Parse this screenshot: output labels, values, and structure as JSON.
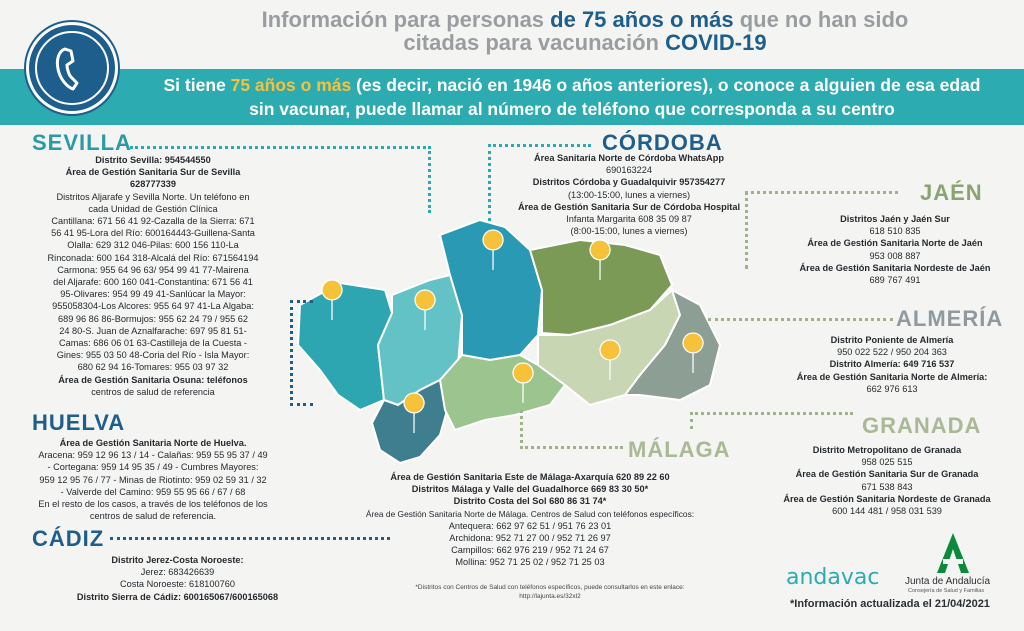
{
  "title": {
    "part1": "Información para personas ",
    "highlight1": "de 75 años o más",
    "part2": " que no han sido",
    "part3": "citadas para vacunación ",
    "highlight2": "COVID-19"
  },
  "banner": {
    "part1": "Si tiene ",
    "highlight": "75 años o más",
    "part2": " (es decir, nació en 1946 o años anteriores), o conoce a alguien de esa edad",
    "line2": "sin vacunar, puede llamar al número de teléfono que corresponda a su centro"
  },
  "colors": {
    "teal": "#2cabb1",
    "navy": "#1e5e8c",
    "yellow": "#f6c23a",
    "green": "#8aa371"
  },
  "regions": {
    "sevilla": {
      "name": "SEVILLA",
      "lines": [
        "Distrito Sevilla: 954544550",
        "Área de Gestión Sanitaria Sur de Sevilla",
        "628777339",
        "Distritos Aljarafe y Sevilla Norte. Un teléfono en",
        "cada Unidad de Gestión Clínica",
        "Cantillana: 671 56 41 92-Cazalla de la Sierra: 671",
        "56 41 95-Lora del Río: 600164443-Guillena-Santa",
        "Olalla: 629 312 046-Pilas: 600 156 110-La",
        "Rinconada: 600 164 318-Alcalá del Río: 671564194",
        "Carmona: 955 64 96 63/ 954 99 41 77-Mairena",
        "del Aljarafe: 600 160 041-Constantina: 671 56 41",
        "95-Olivares: 954 99 49 41-Sanlúcar la Mayor:",
        "955058304-Los Alcores: 955 64 97 41-La Algaba:",
        "689 96 86 86-Bormujos: 955 62 24 79 / 955 62",
        "24 80-S. Juan de Aznalfarache: 697 95 81 51-",
        "Camas: 686 06 01 63-Castilleja de la Cuesta -",
        "Gines: 955 03 50 48-Coria del Río - Isla Mayor:",
        "680 62 94 16-Tomares: 955 03 97 32",
        "Área de Gestión Sanitaria Osuna: teléfonos",
        "centros de salud de referencia"
      ]
    },
    "huelva": {
      "name": "HUELVA",
      "lines": [
        "Área de Gestión Sanitaria Norte de Huelva.",
        "Aracena: 959 12 96 13 / 14 - Calañas: 959 55 95 37 / 49",
        "- Cortegana: 959 14 95 35 / 49 - Cumbres Mayores:",
        "959 12 95 76 / 77 - Minas de Riotinto: 959 02 59 31 / 32",
        "- Valverde del Camino: 959 55 95 66 / 67 / 68",
        "En el resto de los casos, a través de los teléfonos de los",
        "centros de salud de referencia."
      ]
    },
    "cadiz": {
      "name": "CÁDIZ",
      "lines": [
        "Distrito Jerez-Costa Noroeste:",
        "Jerez: 683426639",
        "Costa Noroeste: 618100760",
        "Distrito Sierra de Cádiz: 600165067/600165068"
      ]
    },
    "cordoba": {
      "name": "CÓRDOBA",
      "lines": [
        "Área Sanitaria Norte de Córdoba WhatsApp",
        "690163224",
        "Distritos Córdoba y Guadalquivir 957354277",
        "(13:00-15:00, lunes a viernes)",
        "Área de Gestión Sanitaria Sur de Córdoba Hospital",
        "Infanta Margarita 608 35 09 87",
        "(8:00-15:00, lunes a viernes)"
      ]
    },
    "jaen": {
      "name": "JAÉN",
      "lines": [
        "Distritos Jaén y Jaén Sur",
        "618 510 835",
        "Área de Gestión Sanitaria Norte de Jaén",
        "953 008 887",
        "Área de Gestión Sanitaria Nordeste de Jaén",
        "689 767 491"
      ]
    },
    "almeria": {
      "name": "ALMERÍA",
      "lines": [
        "Distrito Poniente de Almería",
        "950 022 522 / 950 204 363",
        "Distrito Almería: 649 716 537",
        "Área de Gestión Sanitaria Norte de Almería:",
        "662 976 613"
      ]
    },
    "granada": {
      "name": "GRANADA",
      "lines": [
        "Distrito Metropolitano de Granada",
        "958 025 515",
        "Área de Gestión Sanitaria Sur de Granada",
        "671 538 843",
        "Área de Gestión Sanitaria Nordeste de Granada",
        "600 144 481 / 958 031 539"
      ]
    },
    "malaga": {
      "name": "MÁLAGA",
      "lines": [
        "Área de Gestión Sanitaria Este de Málaga-Axarquía 620 89 22 60",
        "Distritos Málaga y Valle del Guadalhorce 669 83 30 50*",
        "Distrito Costa del Sol 680 86 31 74*",
        "Área de Gestión Sanitaria Norte de Málaga. Centros de Salud con teléfonos específicos:",
        "Antequera: 662 97 62 51 / 951 76 23 01",
        "Archidona: 952 71 27 00 / 952 71 26 97",
        "Campillos: 662 976 219 / 952 71 24 67",
        "Mollina: 952 71 25 02 / 952 71 25 03"
      ]
    }
  },
  "footnote": {
    "line1": "*Distritos con Centros de Salud con teléfonos específicos, puede consultarlos en este enlace:",
    "line2": "http://lajunta.es/32xl2"
  },
  "brand": {
    "andavac": "andavac",
    "junta": "Junta de Andalucía",
    "junta_sub": "Consejería de Salud y Familias"
  },
  "update": "*Información actualizada el 21/04/2021",
  "icons": [
    "phone-icon",
    "location-pin-icon"
  ]
}
